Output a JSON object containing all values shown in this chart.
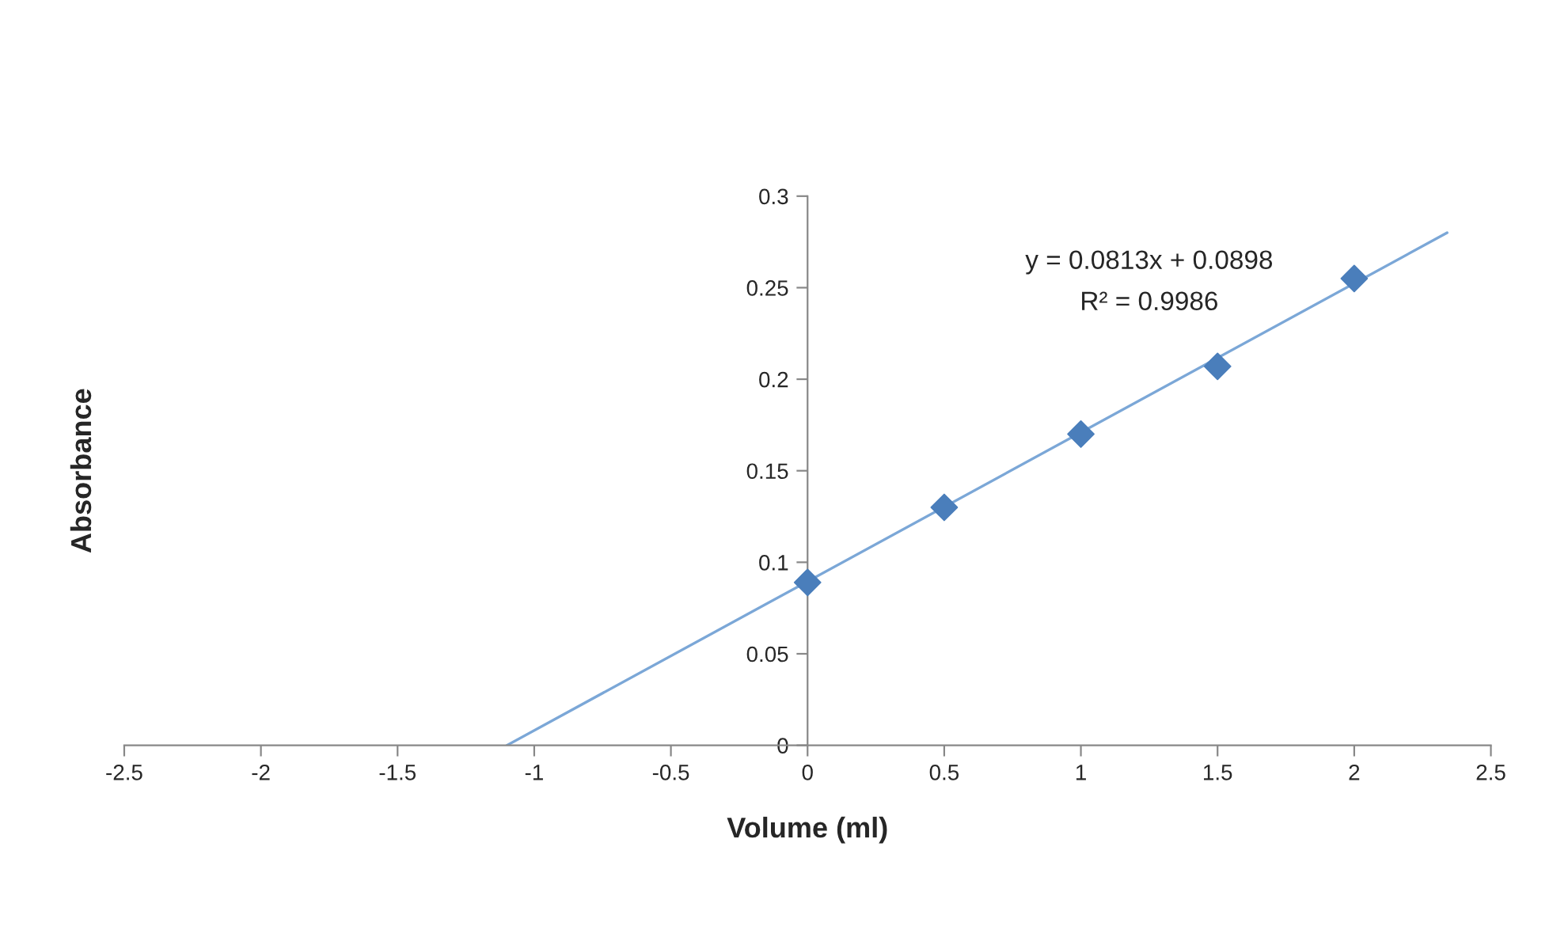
{
  "chart_data": {
    "type": "scatter",
    "xlabel": "Volume (ml)",
    "ylabel": "Absorbance",
    "x": [
      0,
      0.5,
      1,
      1.5,
      2
    ],
    "series": [
      {
        "color": "#4a7ebb",
        "marker": "diamond",
        "values": [
          0.089,
          0.13,
          0.17,
          0.207,
          0.255
        ]
      },
      {
        "type": "line",
        "color": "#7ba7d7",
        "x": [
          -1.1,
          2.34
        ],
        "values": [
          0,
          0.28
        ],
        "marker": "none",
        "line_style": "solid"
      }
    ],
    "annotations": [
      "y = 0.0813x + 0.0898",
      "R² = 0.9986"
    ],
    "xlim": [
      -2.5,
      2.5
    ],
    "xticks": [
      -2.5,
      -2,
      -1.5,
      -1,
      -0.5,
      0,
      0.5,
      1,
      1.5,
      2,
      2.5
    ],
    "ylim": [
      0,
      0.3
    ],
    "yticks": [
      0,
      0.05,
      0.1,
      0.15,
      0.2,
      0.25,
      0.3
    ],
    "grid": false,
    "legend": false
  }
}
